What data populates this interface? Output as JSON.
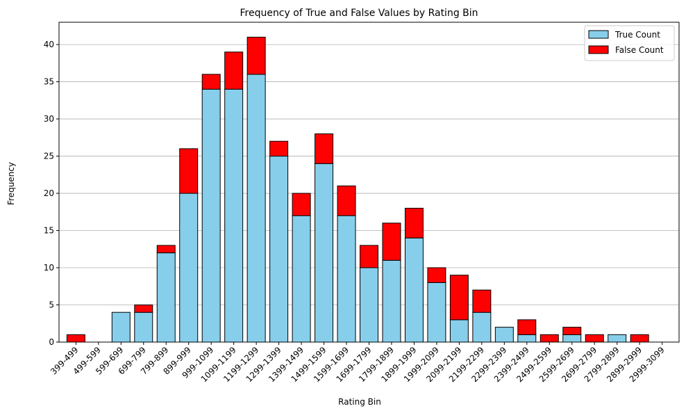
{
  "chart_data": {
    "type": "bar",
    "stacked": true,
    "title": "Frequency of True and False Values by Rating Bin",
    "xlabel": "Rating Bin",
    "ylabel": "Frequency",
    "ylim": [
      0,
      43
    ],
    "yticks": [
      0,
      5,
      10,
      15,
      20,
      25,
      30,
      35,
      40
    ],
    "grid": "y",
    "legend_position": "top-right",
    "categories": [
      "399-499",
      "499-599",
      "599-699",
      "699-799",
      "799-899",
      "899-999",
      "999-1099",
      "1099-1199",
      "1199-1299",
      "1299-1399",
      "1399-1499",
      "1499-1599",
      "1599-1699",
      "1699-1799",
      "1799-1899",
      "1899-1999",
      "1999-2099",
      "2099-2199",
      "2199-2299",
      "2299-2399",
      "2399-2499",
      "2499-2599",
      "2599-2699",
      "2699-2799",
      "2799-2899",
      "2899-2999",
      "2999-3099"
    ],
    "series": [
      {
        "name": "True Count",
        "color": "#87ceeb",
        "values": [
          0,
          0,
          4,
          4,
          12,
          20,
          34,
          34,
          36,
          25,
          17,
          24,
          17,
          10,
          11,
          14,
          8,
          3,
          4,
          2,
          1,
          0,
          1,
          0,
          1,
          0,
          0
        ]
      },
      {
        "name": "False Count",
        "color": "#ff0000",
        "values": [
          1,
          0,
          0,
          1,
          1,
          6,
          2,
          5,
          5,
          2,
          3,
          4,
          4,
          3,
          5,
          4,
          2,
          6,
          3,
          0,
          2,
          1,
          1,
          1,
          0,
          1,
          0
        ]
      }
    ]
  }
}
